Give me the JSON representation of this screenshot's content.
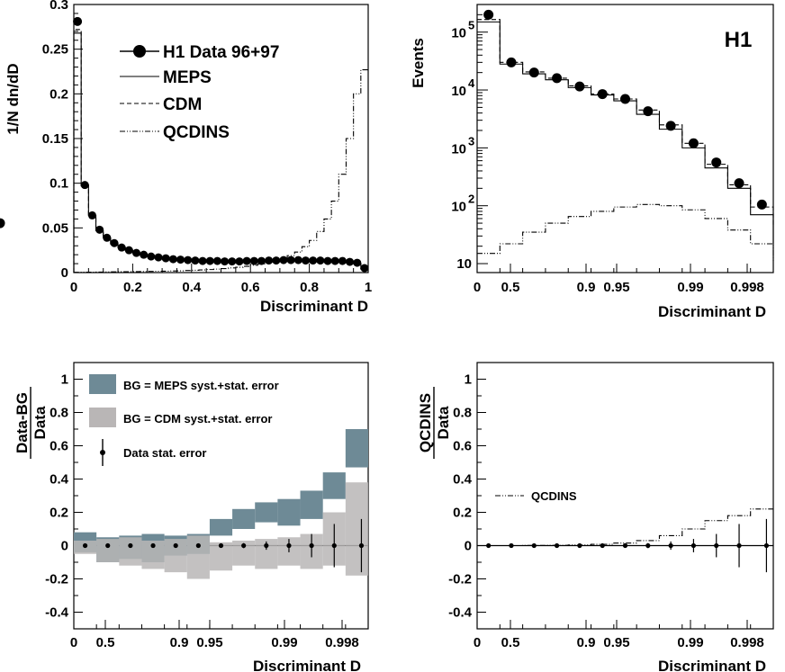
{
  "chart_data": [
    {
      "type": "line",
      "panel": "top-left",
      "xlabel": "Discriminant D",
      "ylabel": "1/N dn/dD",
      "xlim": [
        0,
        1
      ],
      "ylim": [
        0,
        0.3
      ],
      "xticks": [
        "0",
        "0.2",
        "0.4",
        "0.6",
        "0.8",
        "1"
      ],
      "yticks": [
        "0",
        "0.05",
        "0.1",
        "0.15",
        "0.2",
        "0.25",
        "0.3"
      ],
      "legend": [
        "H1 Data 96+97",
        "MEPS",
        "CDM",
        "QCDINS"
      ],
      "series": [
        {
          "name": "H1 Data 96+97",
          "x": [
            0.0125,
            0.0375,
            0.0625,
            0.0875,
            0.1125,
            0.1375,
            0.1625,
            0.1875,
            0.2125,
            0.2375,
            0.2625,
            0.2875,
            0.3125,
            0.3375,
            0.3625,
            0.3875,
            0.4125,
            0.4375,
            0.4625,
            0.4875,
            0.5125,
            0.5375,
            0.5625,
            0.5875,
            0.6125,
            0.6375,
            0.6625,
            0.6875,
            0.7125,
            0.7375,
            0.7625,
            0.7875,
            0.8125,
            0.8375,
            0.8625,
            0.8875,
            0.9125,
            0.9375,
            0.9625,
            0.9875
          ],
          "values": [
            0.281,
            0.098,
            0.064,
            0.048,
            0.039,
            0.033,
            0.028,
            0.025,
            0.022,
            0.02,
            0.018,
            0.017,
            0.016,
            0.015,
            0.0145,
            0.014,
            0.0135,
            0.013,
            0.013,
            0.013,
            0.0125,
            0.0125,
            0.0125,
            0.013,
            0.013,
            0.013,
            0.0135,
            0.0135,
            0.014,
            0.014,
            0.014,
            0.0135,
            0.0135,
            0.0135,
            0.013,
            0.013,
            0.013,
            0.012,
            0.011,
            0.005
          ]
        },
        {
          "name": "MEPS",
          "x": [
            0.0125,
            0.0375,
            0.0625,
            0.0875,
            0.1125,
            0.1375,
            0.1625,
            0.1875,
            0.2125,
            0.2375,
            0.2625,
            0.2875,
            0.3125,
            0.3375,
            0.3625,
            0.3875,
            0.4125,
            0.4375,
            0.4625,
            0.4875,
            0.5125,
            0.5375,
            0.5625,
            0.5875,
            0.6125,
            0.6375,
            0.6625,
            0.6875,
            0.7125,
            0.7375,
            0.7625,
            0.7875,
            0.8125,
            0.8375,
            0.8625,
            0.8875,
            0.9125,
            0.9375,
            0.9625,
            0.9875
          ],
          "values": [
            0.268,
            0.097,
            0.064,
            0.047,
            0.039,
            0.032,
            0.028,
            0.025,
            0.022,
            0.02,
            0.018,
            0.017,
            0.016,
            0.015,
            0.014,
            0.014,
            0.0135,
            0.013,
            0.013,
            0.013,
            0.0125,
            0.0125,
            0.0125,
            0.013,
            0.013,
            0.013,
            0.013,
            0.013,
            0.0135,
            0.0135,
            0.0135,
            0.013,
            0.013,
            0.0125,
            0.0125,
            0.012,
            0.0115,
            0.011,
            0.01,
            0.004
          ]
        },
        {
          "name": "CDM",
          "x": [
            0.0125,
            0.0375,
            0.0625,
            0.0875,
            0.1125,
            0.1375,
            0.1625,
            0.1875,
            0.2125,
            0.2375,
            0.2625,
            0.2875,
            0.3125,
            0.3375,
            0.3625,
            0.3875,
            0.4125,
            0.4375,
            0.4625,
            0.4875,
            0.5125,
            0.5375,
            0.5625,
            0.5875,
            0.6125,
            0.6375,
            0.6625,
            0.6875,
            0.7125,
            0.7375,
            0.7625,
            0.7875,
            0.8125,
            0.8375,
            0.8625,
            0.8875,
            0.9125,
            0.9375,
            0.9625,
            0.9875
          ],
          "values": [
            0.272,
            0.098,
            0.064,
            0.048,
            0.039,
            0.033,
            0.028,
            0.025,
            0.022,
            0.02,
            0.018,
            0.017,
            0.016,
            0.015,
            0.0145,
            0.014,
            0.0135,
            0.013,
            0.013,
            0.013,
            0.0125,
            0.0125,
            0.0125,
            0.013,
            0.013,
            0.013,
            0.0135,
            0.0135,
            0.0135,
            0.0135,
            0.0135,
            0.013,
            0.013,
            0.013,
            0.0125,
            0.0125,
            0.012,
            0.0115,
            0.0105,
            0.0045
          ]
        },
        {
          "name": "QCDINS",
          "x": [
            0.0125,
            0.0375,
            0.0625,
            0.0875,
            0.1125,
            0.1375,
            0.1625,
            0.1875,
            0.2125,
            0.2375,
            0.2625,
            0.2875,
            0.3125,
            0.3375,
            0.3625,
            0.3875,
            0.4125,
            0.4375,
            0.4625,
            0.4875,
            0.5125,
            0.5375,
            0.5625,
            0.5875,
            0.6125,
            0.6375,
            0.6625,
            0.6875,
            0.7125,
            0.7375,
            0.7625,
            0.7875,
            0.8125,
            0.8375,
            0.8625,
            0.8875,
            0.9125,
            0.9375,
            0.9625,
            0.9875
          ],
          "values": [
            0.0003,
            0.0004,
            0.0005,
            0.0006,
            0.0007,
            0.0008,
            0.0009,
            0.001,
            0.0011,
            0.0012,
            0.0013,
            0.0015,
            0.0016,
            0.0018,
            0.002,
            0.0023,
            0.0026,
            0.003,
            0.0034,
            0.0039,
            0.0045,
            0.0052,
            0.006,
            0.007,
            0.0082,
            0.0096,
            0.0113,
            0.0134,
            0.016,
            0.019,
            0.023,
            0.029,
            0.036,
            0.046,
            0.06,
            0.08,
            0.11,
            0.15,
            0.2,
            0.227
          ]
        }
      ]
    },
    {
      "type": "line",
      "panel": "top-right",
      "xlabel": "Discriminant D",
      "ylabel": "Events",
      "yscale": "log",
      "ylim": [
        7,
        300000
      ],
      "xticks": [
        "0",
        "0.5",
        "0.9",
        "0.95",
        "0.99",
        "0.998"
      ],
      "yticks": [
        "10",
        "10^2",
        "10^3",
        "10^4",
        "10^5"
      ],
      "annotation": "H1",
      "bin_edges": [
        0,
        0.1,
        0.2,
        0.3,
        0.4,
        0.5,
        0.6,
        0.7,
        0.8,
        0.9,
        1.0,
        1.1,
        1.2,
        1.3
      ],
      "series": [
        {
          "name": "H1 Data 96+97",
          "values": [
            200000,
            30000,
            20000,
            16000,
            11500,
            8500,
            7000,
            4300,
            2400,
            1200,
            560,
            245,
            105,
            50
          ]
        },
        {
          "name": "MEPS",
          "values": [
            150000,
            28000,
            19000,
            15000,
            11000,
            8200,
            6500,
            3800,
            2100,
            1000,
            450,
            200,
            70,
            22
          ]
        },
        {
          "name": "CDM",
          "values": [
            165000,
            30000,
            20500,
            16000,
            11800,
            8500,
            7000,
            4500,
            2500,
            1200,
            520,
            230,
            95,
            45
          ]
        },
        {
          "name": "QCDINS",
          "values": [
            15,
            22,
            35,
            50,
            65,
            80,
            95,
            105,
            100,
            85,
            60,
            38,
            22,
            11
          ]
        }
      ]
    },
    {
      "type": "area",
      "panel": "bottom-left",
      "xlabel": "Discriminant D",
      "ylabel": "Data-BG / Data",
      "ylim": [
        -0.5,
        1.1
      ],
      "xticks": [
        "0",
        "0.5",
        "0.9",
        "0.95",
        "0.99",
        "0.998"
      ],
      "yticks": [
        "-0.4",
        "-0.2",
        "0",
        "0.2",
        "0.4",
        "0.6",
        "0.8",
        "1"
      ],
      "legend": [
        "BG = MEPS syst.+stat. error",
        "BG = CDM syst.+stat. error",
        "Data stat. error"
      ],
      "bin_edges": [
        0,
        0.1,
        0.2,
        0.3,
        0.4,
        0.5,
        0.6,
        0.7,
        0.8,
        0.9,
        1.0,
        1.1,
        1.2,
        1.3
      ],
      "series": [
        {
          "name": "BG = MEPS syst.+stat. error",
          "low": [
            -0.04,
            -0.1,
            -0.08,
            -0.1,
            -0.06,
            -0.05,
            0.06,
            0.1,
            0.14,
            0.12,
            0.16,
            0.28,
            0.47,
            0.47
          ],
          "high": [
            0.08,
            0.05,
            0.06,
            0.07,
            0.06,
            0.07,
            0.16,
            0.22,
            0.26,
            0.28,
            0.33,
            0.44,
            0.7,
            0.7
          ]
        },
        {
          "name": "BG = CDM syst.+stat. error",
          "low": [
            -0.05,
            -0.1,
            -0.12,
            -0.14,
            -0.16,
            -0.2,
            -0.15,
            -0.12,
            -0.14,
            -0.12,
            -0.14,
            -0.12,
            -0.18,
            -0.18
          ],
          "high": [
            0.03,
            0.04,
            0.05,
            0.03,
            0.04,
            0.06,
            0.02,
            0.03,
            0.04,
            0.05,
            0.07,
            0.2,
            0.38,
            0.38
          ]
        },
        {
          "name": "Data stat. error",
          "x": [
            0.05,
            0.15,
            0.25,
            0.35,
            0.45,
            0.55,
            0.65,
            0.75,
            0.85,
            0.95,
            1.05,
            1.15,
            1.27
          ],
          "values": [
            0,
            0,
            0,
            0,
            0,
            0,
            0,
            0,
            0,
            0,
            0,
            0,
            0
          ],
          "err": [
            0.005,
            0.005,
            0.006,
            0.006,
            0.007,
            0.008,
            0.01,
            0.015,
            0.025,
            0.04,
            0.07,
            0.13,
            0.16
          ]
        }
      ]
    },
    {
      "type": "line",
      "panel": "bottom-right",
      "xlabel": "Discriminant D",
      "ylabel": "QCDINS / Data",
      "ylim": [
        -0.5,
        1.1
      ],
      "xticks": [
        "0",
        "0.5",
        "0.9",
        "0.95",
        "0.99",
        "0.998"
      ],
      "yticks": [
        "-0.4",
        "-0.2",
        "0",
        "0.2",
        "0.4",
        "0.6",
        "0.8",
        "1"
      ],
      "legend": [
        "QCDINS"
      ],
      "bin_edges": [
        0,
        0.1,
        0.2,
        0.3,
        0.4,
        0.5,
        0.6,
        0.7,
        0.8,
        0.9,
        1.0,
        1.1,
        1.2,
        1.3
      ],
      "series": [
        {
          "name": "QCDINS",
          "values": [
            0,
            0,
            0.001,
            0.002,
            0.004,
            0.008,
            0.015,
            0.03,
            0.06,
            0.1,
            0.15,
            0.18,
            0.22,
            0.22
          ]
        },
        {
          "name": "Data stat. error",
          "x": [
            0.05,
            0.15,
            0.25,
            0.35,
            0.45,
            0.55,
            0.65,
            0.75,
            0.85,
            0.95,
            1.05,
            1.15,
            1.27
          ],
          "values": [
            0,
            0,
            0,
            0,
            0,
            0,
            0,
            0,
            0,
            0,
            0,
            0,
            0
          ],
          "err": [
            0.005,
            0.005,
            0.006,
            0.006,
            0.007,
            0.008,
            0.01,
            0.015,
            0.025,
            0.04,
            0.07,
            0.13,
            0.16
          ]
        }
      ]
    }
  ]
}
